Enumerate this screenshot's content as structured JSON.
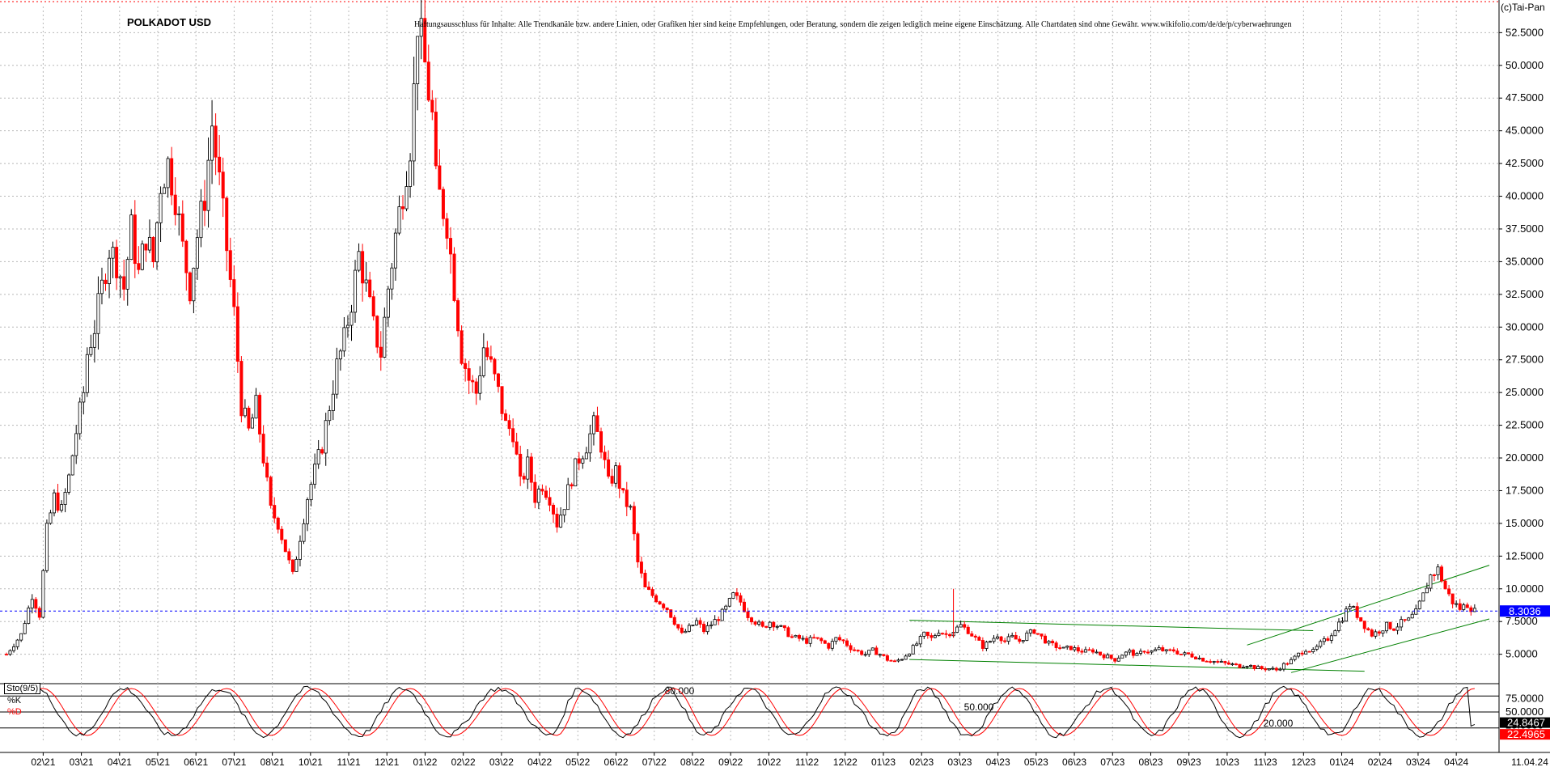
{
  "chart_data": [
    {
      "type": "candlestick",
      "title": "POLKADOT USD",
      "disclaimer": "Haftungsausschluss für Inhalte: Alle Trendkanäle bzw. andere Linien, oder Grafiken hier sind keine Empfehlungen, oder Beratung, sondern die zeigen lediglich meine eigene Einschätzung. Alle Chartdaten sind ohne Gewähr. www.wikifolio.com/de/de/p/cyberwaehrungen",
      "copyright": "(c)Tai-Pan",
      "y_ticks": [
        "52.5000",
        "50.0000",
        "47.5000",
        "45.0000",
        "42.5000",
        "40.0000",
        "37.5000",
        "35.0000",
        "32.5000",
        "30.0000",
        "27.5000",
        "25.0000",
        "22.5000",
        "20.0000",
        "17.5000",
        "15.0000",
        "12.5000",
        "10.0000",
        "7.5000",
        "5.0000"
      ],
      "x_ticks": [
        "02\\21",
        "03\\21",
        "04\\21",
        "05\\21",
        "06\\21",
        "07\\21",
        "08\\21",
        "10\\21",
        "11\\21",
        "12\\21",
        "01\\22",
        "02\\22",
        "03\\22",
        "04\\22",
        "05\\22",
        "06\\22",
        "07\\22",
        "08\\22",
        "09\\22",
        "10\\22",
        "11\\22",
        "12\\22",
        "01\\23",
        "02\\23",
        "03\\23",
        "04\\23",
        "05\\23",
        "06\\23",
        "07\\23",
        "08\\23",
        "09\\23",
        "10\\23",
        "11\\23",
        "12\\23",
        "01\\24",
        "02\\24",
        "03\\24",
        "04\\24"
      ],
      "last_date_label": "11.04.24",
      "ylim": [
        3.0,
        54.5
      ],
      "current_price": 8.3036,
      "current_price_label": "8.3036",
      "path_points": [
        [
          0,
          5.0
        ],
        [
          4,
          6.5
        ],
        [
          7,
          9.5
        ],
        [
          9,
          8.0
        ],
        [
          11,
          14.5
        ],
        [
          13,
          17.0
        ],
        [
          15,
          16.0
        ],
        [
          17,
          18.5
        ],
        [
          19,
          22.0
        ],
        [
          21,
          25.0
        ],
        [
          22,
          28.0
        ],
        [
          24,
          30.0
        ],
        [
          26,
          33.0
        ],
        [
          28,
          36.0
        ],
        [
          30,
          35.0
        ],
        [
          32,
          33.0
        ],
        [
          34,
          37.5
        ],
        [
          36,
          34.0
        ],
        [
          38,
          37.0
        ],
        [
          40,
          35.0
        ],
        [
          42,
          41.0
        ],
        [
          44,
          42.5
        ],
        [
          46,
          40.0
        ],
        [
          48,
          36.0
        ],
        [
          50,
          33.0
        ],
        [
          52,
          37.0
        ],
        [
          54,
          40.0
        ],
        [
          56,
          45.5
        ],
        [
          58,
          41.0
        ],
        [
          60,
          36.0
        ],
        [
          62,
          31.0
        ],
        [
          64,
          24.0
        ],
        [
          66,
          22.0
        ],
        [
          68,
          24.0
        ],
        [
          70,
          20.0
        ],
        [
          72,
          16.0
        ],
        [
          74,
          15.0
        ],
        [
          76,
          13.0
        ],
        [
          78,
          11.0
        ],
        [
          80,
          14.0
        ],
        [
          82,
          17.0
        ],
        [
          84,
          19.0
        ],
        [
          86,
          21.0
        ],
        [
          88,
          24.0
        ],
        [
          90,
          27.0
        ],
        [
          92,
          29.0
        ],
        [
          94,
          32.0
        ],
        [
          96,
          35.5
        ],
        [
          98,
          33.0
        ],
        [
          100,
          30.0
        ],
        [
          102,
          28.0
        ],
        [
          104,
          33.0
        ],
        [
          106,
          37.0
        ],
        [
          108,
          40.5
        ],
        [
          110,
          44.0
        ],
        [
          111,
          48.0
        ],
        [
          112,
          53.5
        ],
        [
          114,
          50.0
        ],
        [
          116,
          46.0
        ],
        [
          117,
          41.0
        ],
        [
          118,
          40.0
        ],
        [
          120,
          38.0
        ],
        [
          122,
          33.0
        ],
        [
          124,
          28.0
        ],
        [
          126,
          26.0
        ],
        [
          128,
          25.0
        ],
        [
          130,
          28.5
        ],
        [
          132,
          27.0
        ],
        [
          134,
          25.0
        ],
        [
          136,
          22.5
        ],
        [
          138,
          22.0
        ],
        [
          140,
          18.0
        ],
        [
          142,
          19.5
        ],
        [
          144,
          17.0
        ],
        [
          146,
          18.0
        ],
        [
          148,
          17.0
        ],
        [
          150,
          15.0
        ],
        [
          152,
          16.5
        ],
        [
          154,
          18.5
        ],
        [
          156,
          20.0
        ],
        [
          158,
          21.0
        ],
        [
          160,
          22.5
        ],
        [
          162,
          21.0
        ],
        [
          164,
          18.0
        ],
        [
          166,
          19.0
        ],
        [
          168,
          17.0
        ],
        [
          170,
          16.0
        ],
        [
          171,
          14.0
        ],
        [
          172,
          12.0
        ],
        [
          174,
          10.0
        ],
        [
          176,
          9.5
        ],
        [
          178,
          9.0
        ],
        [
          180,
          8.5
        ],
        [
          182,
          7.5
        ],
        [
          184,
          6.5
        ],
        [
          186,
          7.0
        ],
        [
          188,
          7.5
        ],
        [
          190,
          6.8
        ],
        [
          192,
          7.3
        ],
        [
          194,
          7.8
        ],
        [
          196,
          8.5
        ],
        [
          198,
          9.5
        ],
        [
          200,
          9.0
        ],
        [
          202,
          8.0
        ],
        [
          204,
          7.5
        ],
        [
          206,
          7.0
        ],
        [
          208,
          7.5
        ],
        [
          210,
          7.2
        ],
        [
          212,
          6.8
        ],
        [
          214,
          6.3
        ],
        [
          216,
          6.2
        ],
        [
          218,
          6.0
        ],
        [
          220,
          6.2
        ],
        [
          222,
          6.0
        ],
        [
          224,
          5.6
        ],
        [
          226,
          6.2
        ],
        [
          228,
          6.0
        ],
        [
          230,
          5.5
        ],
        [
          232,
          5.2
        ],
        [
          234,
          5.0
        ],
        [
          236,
          5.3
        ],
        [
          238,
          5.0
        ],
        [
          240,
          4.6
        ],
        [
          242,
          4.4
        ],
        [
          244,
          4.7
        ],
        [
          246,
          5.2
        ],
        [
          248,
          5.8
        ],
        [
          250,
          6.5
        ],
        [
          252,
          6.2
        ],
        [
          254,
          6.8
        ],
        [
          256,
          6.5
        ],
        [
          258,
          6.8
        ],
        [
          260,
          7.2
        ],
        [
          262,
          6.8
        ],
        [
          264,
          6.2
        ],
        [
          266,
          5.6
        ],
        [
          268,
          6.0
        ],
        [
          270,
          6.5
        ],
        [
          272,
          6.0
        ],
        [
          274,
          6.3
        ],
        [
          276,
          6.0
        ],
        [
          278,
          6.5
        ],
        [
          280,
          6.8
        ],
        [
          282,
          6.3
        ],
        [
          284,
          5.8
        ],
        [
          286,
          5.6
        ],
        [
          288,
          5.4
        ],
        [
          290,
          5.5
        ],
        [
          292,
          5.3
        ],
        [
          294,
          5.2
        ],
        [
          296,
          5.3
        ],
        [
          298,
          5.0
        ],
        [
          300,
          4.8
        ],
        [
          302,
          4.6
        ],
        [
          304,
          5.0
        ],
        [
          306,
          5.2
        ],
        [
          308,
          4.9
        ],
        [
          310,
          5.3
        ],
        [
          312,
          5.2
        ],
        [
          314,
          5.4
        ],
        [
          316,
          5.2
        ],
        [
          318,
          5.3
        ],
        [
          320,
          5.0
        ],
        [
          322,
          5.0
        ],
        [
          324,
          4.8
        ],
        [
          326,
          4.6
        ],
        [
          328,
          4.5
        ],
        [
          330,
          4.4
        ],
        [
          332,
          4.3
        ],
        [
          334,
          4.2
        ],
        [
          336,
          4.1
        ],
        [
          338,
          4.2
        ],
        [
          340,
          4.0
        ],
        [
          342,
          3.9
        ],
        [
          344,
          3.9
        ],
        [
          346,
          3.8
        ],
        [
          348,
          4.2
        ],
        [
          350,
          4.5
        ],
        [
          352,
          5.0
        ],
        [
          354,
          5.4
        ],
        [
          356,
          5.2
        ],
        [
          358,
          5.8
        ],
        [
          360,
          6.2
        ],
        [
          362,
          7.0
        ],
        [
          364,
          7.8
        ],
        [
          366,
          8.8
        ],
        [
          368,
          8.0
        ],
        [
          370,
          7.2
        ],
        [
          372,
          6.5
        ],
        [
          374,
          6.8
        ],
        [
          376,
          7.2
        ],
        [
          378,
          7.0
        ],
        [
          380,
          7.4
        ],
        [
          382,
          7.6
        ],
        [
          384,
          8.2
        ],
        [
          386,
          9.5
        ],
        [
          388,
          11.0
        ],
        [
          390,
          11.5
        ],
        [
          392,
          10.0
        ],
        [
          394,
          9.0
        ],
        [
          396,
          8.5
        ],
        [
          398,
          8.8
        ],
        [
          400,
          8.3
        ]
      ],
      "x_domain": [
        0,
        404
      ],
      "trendlines": [
        {
          "from": [
            246,
            7.6
          ],
          "to": [
            356,
            6.8
          ]
        },
        {
          "from": [
            246,
            4.6
          ],
          "to": [
            370,
            3.7
          ]
        },
        {
          "from": [
            338,
            5.7
          ],
          "to": [
            404,
            11.8
          ]
        },
        {
          "from": [
            350,
            3.6
          ],
          "to": [
            404,
            7.7
          ]
        }
      ],
      "spike": {
        "x": 258,
        "low": 6.3,
        "high": 10.0
      }
    },
    {
      "type": "line",
      "title": "Sto(9/5)",
      "series": [
        {
          "name": "%K",
          "color": "#000000"
        },
        {
          "name": "%D",
          "color": "#ff0000"
        }
      ],
      "levels": [
        {
          "value": 80,
          "label": "80.000"
        },
        {
          "value": 50,
          "label": "50.000"
        },
        {
          "value": 20,
          "label": "20.000"
        }
      ],
      "last_k_label": "24.8467",
      "last_d_label": "22.4965",
      "right_labels": [
        "75.0000",
        "50.0000",
        "25.0000"
      ],
      "ylim": [
        0,
        100
      ],
      "cycle_minima_x": [
        20,
        45,
        70,
        96,
        120,
        148,
        168,
        190,
        214,
        240,
        262,
        286,
        312,
        336,
        362,
        386
      ],
      "cycle_maxima_x": [
        8,
        32,
        58,
        82,
        108,
        134,
        156,
        180,
        202,
        226,
        250,
        274,
        300,
        324,
        348,
        372,
        398
      ]
    }
  ],
  "colors": {
    "up": "#000000",
    "down": "#ff0000",
    "price_line": "#0000ff",
    "trend": "#008000",
    "grid": "#b8b8b8"
  }
}
